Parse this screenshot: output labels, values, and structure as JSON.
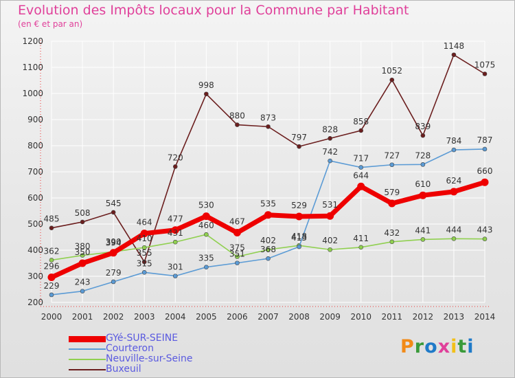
{
  "header": {
    "title": "Evolution des Impôts locaux pour la Commune par Habitant",
    "subtitle": "(en € et par an)"
  },
  "chart_data": {
    "type": "line",
    "title": "Evolution des Impôts locaux pour la Commune par Habitant",
    "subtitle": "(en € et par an)",
    "xlabel": "",
    "ylabel": "",
    "x": [
      2000,
      2001,
      2002,
      2003,
      2004,
      2005,
      2006,
      2007,
      2008,
      2009,
      2010,
      2011,
      2012,
      2013,
      2014
    ],
    "ylim": [
      200,
      1200
    ],
    "yticks": [
      200,
      300,
      400,
      500,
      600,
      700,
      800,
      900,
      1000,
      1100,
      1200
    ],
    "grid": true,
    "legend_position": "bottom-left",
    "series": [
      {
        "name": "GYé-SUR-SEINE",
        "color": "#ee0000",
        "values": [
          296,
          350,
          390,
          464,
          477,
          530,
          467,
          535,
          529,
          531,
          644,
          579,
          610,
          624,
          660
        ]
      },
      {
        "name": "Courteron",
        "color": "#5b9bd5",
        "values": [
          229,
          243,
          279,
          315,
          301,
          335,
          351,
          368,
          413,
          742,
          717,
          727,
          728,
          784,
          787
        ]
      },
      {
        "name": "Neuville-sur-Seine",
        "color": "#90d050",
        "values": [
          362,
          380,
          394,
          410,
          431,
          460,
          375,
          402,
          418,
          402,
          411,
          432,
          441,
          444,
          443
        ]
      },
      {
        "name": "Buxeuil",
        "color": "#6b1e1e",
        "values": [
          485,
          508,
          545,
          355,
          720,
          998,
          880,
          873,
          797,
          828,
          858,
          1052,
          839,
          1148,
          1075
        ]
      }
    ]
  },
  "legend": {
    "items": [
      {
        "label": "GYé-SUR-SEINE",
        "color": "#ee0000"
      },
      {
        "label": "Courteron",
        "color": "#5b9bd5"
      },
      {
        "label": "Neuville-sur-Seine",
        "color": "#90d050"
      },
      {
        "label": "Buxeuil",
        "color": "#6b1e1e"
      }
    ]
  },
  "logo": {
    "text": "Proxiti"
  }
}
